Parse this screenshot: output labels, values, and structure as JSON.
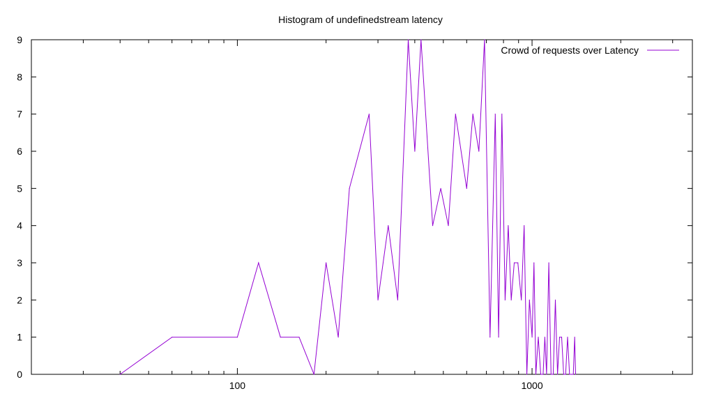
{
  "chart_data": {
    "type": "line",
    "title": "Histogram of undefinedstream latency",
    "xlabel": "",
    "ylabel": "",
    "x_scale": "log",
    "xlim": [
      20,
      3500
    ],
    "ylim": [
      0,
      9
    ],
    "x_tick_labels": [
      "100",
      "1000"
    ],
    "y_tick_labels": [
      "0",
      "1",
      "2",
      "3",
      "4",
      "5",
      "6",
      "7",
      "8",
      "9"
    ],
    "legend_position": "top-right",
    "grid": false,
    "series": [
      {
        "name": "Crowd of requests over Latency",
        "color": "#9400d3",
        "x": [
          40,
          60,
          100,
          118,
          140,
          162,
          182,
          200,
          220,
          240,
          280,
          300,
          325,
          350,
          380,
          400,
          420,
          460,
          490,
          520,
          550,
          600,
          630,
          660,
          690,
          720,
          750,
          770,
          790,
          810,
          830,
          850,
          870,
          895,
          920,
          940,
          960,
          980,
          1000,
          1015,
          1030,
          1050,
          1070,
          1090,
          1105,
          1120,
          1140,
          1160,
          1180,
          1200,
          1220,
          1240,
          1260,
          1280,
          1300,
          1320,
          1340,
          1360,
          1380,
          1395,
          1405
        ],
        "y": [
          0,
          1,
          1,
          3,
          1,
          1,
          0,
          3,
          1,
          5,
          7,
          2,
          4,
          2,
          9,
          6,
          9,
          4,
          5,
          4,
          7,
          5,
          7,
          6,
          9,
          1,
          7,
          1,
          7,
          2,
          4,
          2,
          3,
          3,
          2,
          4,
          0,
          2,
          1,
          3,
          0,
          1,
          0,
          0,
          1,
          0,
          3,
          0,
          0,
          2,
          0,
          1,
          1,
          0,
          0,
          1,
          0,
          0,
          0,
          1,
          0
        ]
      }
    ]
  }
}
